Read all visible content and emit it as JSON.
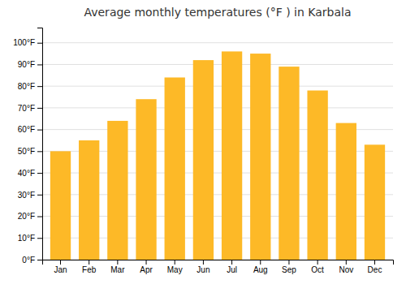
{
  "chart_data": {
    "type": "bar",
    "title": "Average monthly temperatures (°F ) in Karbala",
    "categories": [
      "Jan",
      "Feb",
      "Mar",
      "Apr",
      "May",
      "Jun",
      "Jul",
      "Aug",
      "Sep",
      "Oct",
      "Nov",
      "Dec"
    ],
    "values": [
      50,
      55,
      64,
      74,
      84,
      92,
      96,
      95,
      89,
      78,
      63,
      53
    ],
    "color": "#FDB927",
    "ylim": [
      0,
      107
    ],
    "yticks": [
      {
        "value": 0,
        "label": "0°F"
      },
      {
        "value": 10,
        "label": "10°F"
      },
      {
        "value": 20,
        "label": "20°F"
      },
      {
        "value": 30,
        "label": "30°F"
      },
      {
        "value": 40,
        "label": "40°F"
      },
      {
        "value": 50,
        "label": "50°F"
      },
      {
        "value": 60,
        "label": "60°F"
      },
      {
        "value": 70,
        "label": "70°F"
      },
      {
        "value": 80,
        "label": "80°F"
      },
      {
        "value": 90,
        "label": "90°F"
      },
      {
        "value": 100,
        "label": "100°F"
      }
    ],
    "grid": true
  }
}
